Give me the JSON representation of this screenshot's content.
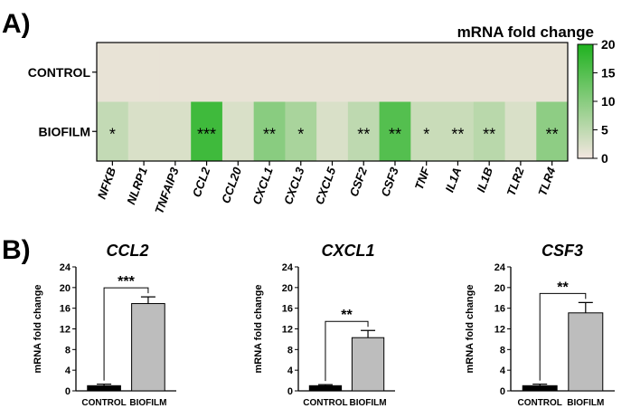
{
  "panel_labels": {
    "a": "A)",
    "b": "B)"
  },
  "chart_data": [
    {
      "type": "heatmap",
      "title": "mRNA fold change",
      "rows": [
        "CONTROL",
        "BIOFILM"
      ],
      "columns": [
        "NFKB",
        "NLRP1",
        "TNFAIP3",
        "CCL2",
        "CCL20",
        "CXCL1",
        "CXCL3",
        "CXCL5",
        "CSF2",
        "CSF3",
        "TNF",
        "IL1A",
        "IL1B",
        "TLR2",
        "TLR4"
      ],
      "values": [
        [
          1,
          1,
          1,
          1,
          1,
          1,
          1,
          1,
          1,
          1,
          1,
          1,
          1,
          1,
          1
        ],
        [
          4.5,
          2.5,
          2.5,
          17,
          2.5,
          10,
          7,
          2.5,
          5,
          15,
          4,
          4,
          5.5,
          2.5,
          9.5
        ]
      ],
      "significance": [
        [
          "",
          "",
          "",
          "",
          "",
          "",
          "",
          "",
          "",
          "",
          "",
          "",
          "",
          "",
          ""
        ],
        [
          "*",
          "",
          "",
          "***",
          "",
          "**",
          "*",
          "",
          "**",
          "**",
          "*",
          "**",
          "**",
          "",
          "**"
        ]
      ],
      "colorbar": {
        "min": 0,
        "max": 20,
        "ticks": [
          "0",
          "5",
          "10",
          "15",
          "20"
        ],
        "low_color": "#f3e6e0",
        "high_color": "#1fb21f"
      }
    },
    {
      "type": "bar",
      "title": "CCL2",
      "ylabel": "mRNA fold change",
      "categories": [
        "CONTROL",
        "BIOFILM"
      ],
      "values": [
        1.0,
        16.9
      ],
      "errors": [
        0.3,
        1.3
      ],
      "ylim": [
        0,
        24
      ],
      "yticks": [
        "0",
        "4",
        "8",
        "12",
        "16",
        "20",
        "24"
      ],
      "significance": "***",
      "bar_colors": [
        "#000000",
        "#bdbdbd"
      ]
    },
    {
      "type": "bar",
      "title": "CXCL1",
      "ylabel": "mRNA fold change",
      "categories": [
        "CONTROL",
        "BIOFILM"
      ],
      "values": [
        1.0,
        10.3
      ],
      "errors": [
        0.2,
        1.4
      ],
      "ylim": [
        0,
        24
      ],
      "yticks": [
        "0",
        "4",
        "8",
        "12",
        "16",
        "20",
        "24"
      ],
      "significance": "**",
      "bar_colors": [
        "#000000",
        "#bdbdbd"
      ]
    },
    {
      "type": "bar",
      "title": "CSF3",
      "ylabel": "mRNA fold change",
      "categories": [
        "CONTROL",
        "BIOFILM"
      ],
      "values": [
        1.0,
        15.1
      ],
      "errors": [
        0.3,
        2.0
      ],
      "ylim": [
        0,
        24
      ],
      "yticks": [
        "0",
        "4",
        "8",
        "12",
        "16",
        "20",
        "24"
      ],
      "significance": "**",
      "bar_colors": [
        "#000000",
        "#bdbdbd"
      ]
    }
  ]
}
